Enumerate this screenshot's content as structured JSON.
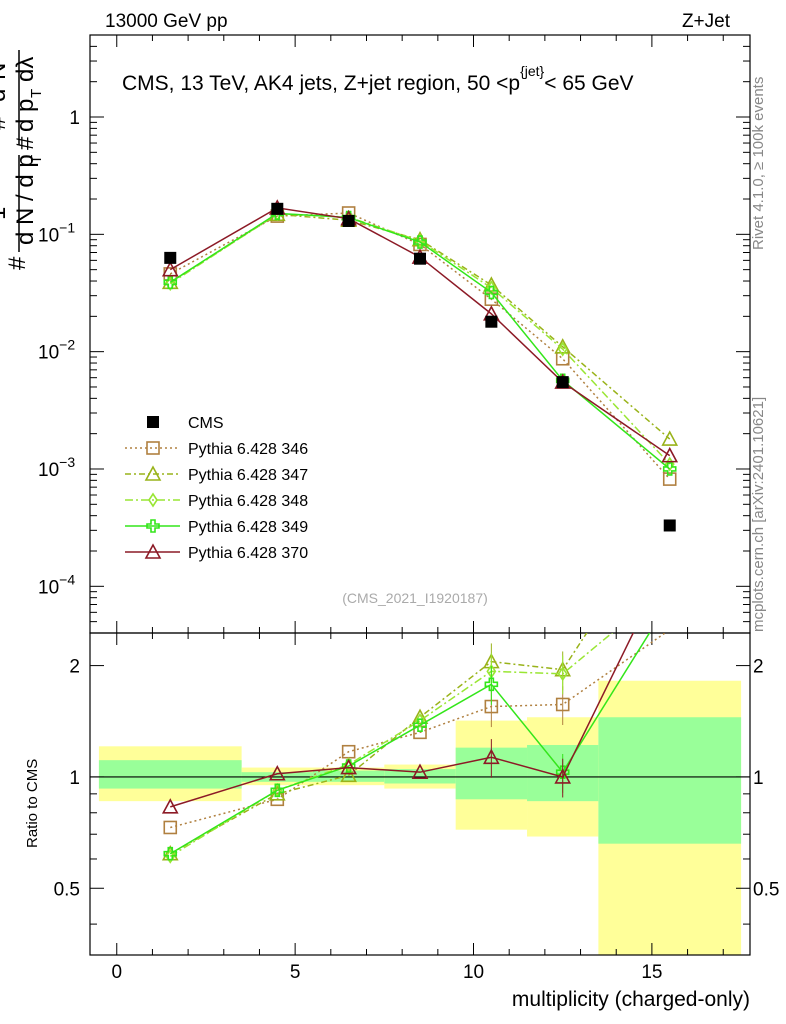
{
  "header": {
    "left": "13000 GeV pp",
    "right": "Z+Jet"
  },
  "side": {
    "rivet": "Rivet 4.1.0, ≥ 100k events",
    "mcplots": "mcplots.cern.ch [arXiv:2401.10621]"
  },
  "chart_data": {
    "type": "line",
    "title": "CMS, 13 TeV, AK4 jets, Z+jet region, 50 <p_T^{jet}< 65 GeV",
    "xlabel": "multiplicity (charged-only)",
    "ylabel": "1/dN/dpT # d2N/dpT dlambda",
    "ratio_ylabel": "Ratio to CMS",
    "watermark": "(CMS_2021_I1920187)",
    "xlim": [
      -0.75,
      17.75
    ],
    "ylim": [
      4e-05,
      5
    ],
    "ratio_ylim": [
      0.33,
      2.45
    ],
    "x_ticks": [
      "0",
      "5",
      "10",
      "15"
    ],
    "y_ticks": [
      "10^-4",
      "10^-3",
      "10^-2",
      "10^-1",
      "1"
    ],
    "ratio_ticks": [
      "0.5",
      "1",
      "2"
    ],
    "x": [
      1.5,
      4.5,
      6.5,
      8.5,
      10.5,
      12.5,
      15.5
    ],
    "bin_edges": [
      -0.5,
      3.5,
      5.5,
      7.5,
      9.5,
      11.5,
      13.5,
      17.5
    ],
    "data": {
      "name": "CMS",
      "color": "#000000",
      "values": [
        0.063,
        0.165,
        0.13,
        0.062,
        0.018,
        0.0055,
        0.00033
      ]
    },
    "bands": {
      "inner": [
        [
          0.93,
          1.11
        ],
        [
          0.97,
          1.03
        ],
        [
          0.97,
          1.04
        ],
        [
          0.96,
          1.05
        ],
        [
          0.87,
          1.2
        ],
        [
          0.86,
          1.22
        ],
        [
          0.66,
          1.45
        ]
      ],
      "outer": [
        [
          0.86,
          1.21
        ],
        [
          0.95,
          1.06
        ],
        [
          0.95,
          1.06
        ],
        [
          0.93,
          1.08
        ],
        [
          0.72,
          1.42
        ],
        [
          0.69,
          1.45
        ],
        [
          0.33,
          1.82
        ]
      ],
      "inner_color": "#99ff99",
      "outer_color": "#ffff99"
    },
    "series": [
      {
        "name": "Pythia 6.428 346",
        "color": "#b08040",
        "marker": "square",
        "dash": "2,3",
        "values": [
          0.046,
          0.143,
          0.152,
          0.082,
          0.028,
          0.0087,
          0.00082
        ],
        "ratio": [
          0.73,
          0.87,
          1.17,
          1.32,
          1.55,
          1.57,
          2.5
        ]
      },
      {
        "name": "Pythia 6.428 347",
        "color": "#99b31a",
        "marker": "triangle",
        "dash": "6,3,2,3",
        "values": [
          0.039,
          0.148,
          0.132,
          0.09,
          0.037,
          0.011,
          0.0018
        ],
        "ratio": [
          0.62,
          0.9,
          1.01,
          1.45,
          2.05,
          1.95,
          5.4
        ]
      },
      {
        "name": "Pythia 6.428 348",
        "color": "#99e633",
        "marker": "diamond",
        "dash": "8,3,2,3",
        "values": [
          0.038,
          0.15,
          0.14,
          0.088,
          0.035,
          0.0105,
          0.0011
        ],
        "ratio": [
          0.61,
          0.92,
          1.08,
          1.42,
          1.93,
          1.9,
          3.3
        ]
      },
      {
        "name": "Pythia 6.428 349",
        "color": "#33e61a",
        "marker": "cross",
        "dash": "",
        "values": [
          0.039,
          0.151,
          0.139,
          0.086,
          0.032,
          0.0057,
          0.001
        ],
        "ratio": [
          0.62,
          0.92,
          1.07,
          1.38,
          1.78,
          1.03,
          3.0
        ]
      },
      {
        "name": "Pythia 6.428 370",
        "color": "#8c1a26",
        "marker": "triangle",
        "dash": "",
        "values": [
          0.05,
          0.168,
          0.136,
          0.064,
          0.021,
          0.0055,
          0.0013
        ],
        "ratio": [
          0.83,
          1.02,
          1.06,
          1.03,
          1.13,
          1.0,
          3.9
        ]
      }
    ]
  }
}
